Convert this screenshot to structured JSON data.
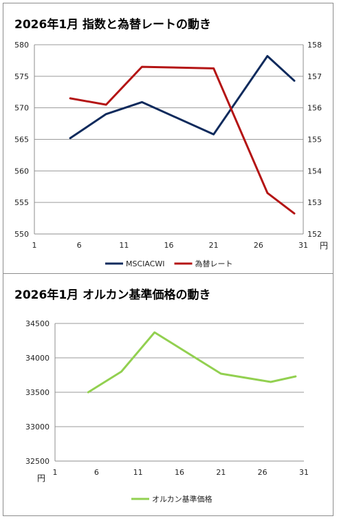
{
  "chart_data": [
    {
      "type": "line",
      "title": "2026年1月 指数と為替レートの動き",
      "x": [
        5,
        9,
        13,
        21,
        27,
        30
      ],
      "xticks": [
        "1",
        "6",
        "11",
        "16",
        "21",
        "26",
        "31"
      ],
      "xunit": "円",
      "xlim": [
        1,
        31
      ],
      "y_left": {
        "ylim": [
          550,
          580
        ],
        "ticks": [
          "550",
          "555",
          "560",
          "565",
          "570",
          "575",
          "580"
        ]
      },
      "y_right": {
        "ylim": [
          152,
          158
        ],
        "ticks": [
          "152",
          "153",
          "154",
          "155",
          "156",
          "157",
          "158"
        ]
      },
      "series": [
        {
          "name": "MSCIACWI",
          "axis": "left",
          "color": "#0e2a5c",
          "values": [
            565.2,
            569.0,
            570.9,
            565.8,
            578.2,
            574.3
          ]
        },
        {
          "name": "為替レート",
          "axis": "right",
          "color": "#b41414",
          "values": [
            156.3,
            156.1,
            157.3,
            157.25,
            153.3,
            152.65
          ]
        }
      ],
      "grid": true,
      "legend": "bottom"
    },
    {
      "type": "line",
      "title": "2026年1月 オルカン基準価格の動き",
      "x": [
        5,
        9,
        13,
        21,
        27,
        30
      ],
      "xticks": [
        "1",
        "6",
        "11",
        "16",
        "21",
        "26",
        "31"
      ],
      "xlim": [
        1,
        31
      ],
      "y_left": {
        "ylim": [
          32500,
          34500
        ],
        "ticks": [
          "32500",
          "33000",
          "33500",
          "34000",
          "34500"
        ],
        "unit": "円"
      },
      "series": [
        {
          "name": "オルカン基準価格",
          "axis": "left",
          "color": "#92d050",
          "values": [
            33500,
            33800,
            34370,
            33770,
            33650,
            33730
          ]
        }
      ],
      "grid": true,
      "legend": "bottom"
    }
  ]
}
